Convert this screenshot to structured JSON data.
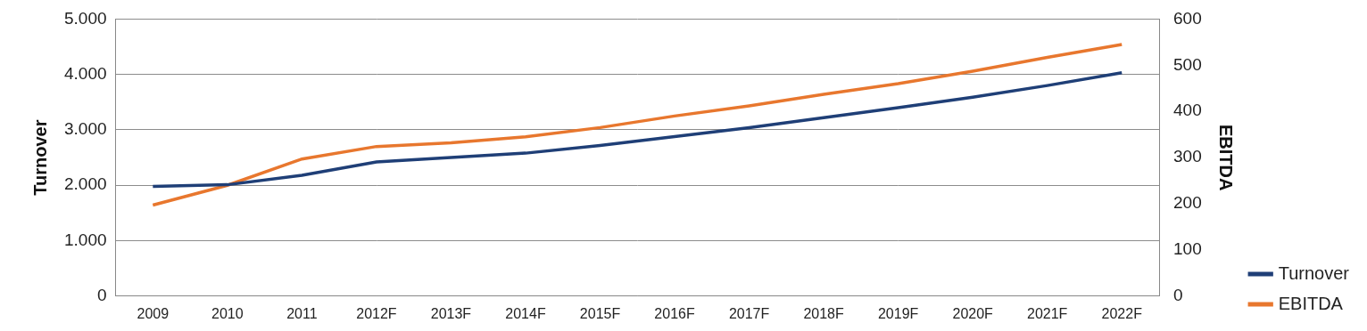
{
  "chart_data": {
    "type": "line",
    "categories": [
      "2009",
      "2010",
      "2011",
      "2012F",
      "2013F",
      "2014F",
      "2015F",
      "2016F",
      "2017F",
      "2018F",
      "2019F",
      "2020F",
      "2021F",
      "2022F"
    ],
    "y_label": "Turnover",
    "y2_label": "EBITDA",
    "ylim": [
      0,
      5000
    ],
    "yticks": [
      0,
      {
        "value": 1000,
        "label": "1.000"
      },
      {
        "value": 2000,
        "label": "2.000"
      },
      {
        "value": 3000,
        "label": "3.000"
      },
      {
        "value": 4000,
        "label": "4.000"
      },
      {
        "value": 5000,
        "label": "5.000"
      }
    ],
    "y2lim": [
      0,
      600
    ],
    "y2ticks": [
      0,
      100,
      200,
      300,
      400,
      500,
      600
    ],
    "grid": true,
    "legend": "right",
    "series": [
      {
        "name": "Turnover",
        "color": "#1f3f77",
        "marker": "none",
        "line_style": "solid",
        "values": [
          1980,
          2010,
          2180,
          2420,
          2500,
          2580,
          2720,
          2880,
          3040,
          3220,
          3400,
          3590,
          3800,
          4030
        ]
      },
      {
        "name": "EBITDA",
        "color": "#e8772e",
        "marker": "none",
        "line_style": "solid",
        "axis": "y2",
        "values": [
          197,
          240,
          297,
          324,
          332,
          345,
          365,
          390,
          412,
          437,
          460,
          487,
          517,
          545
        ]
      }
    ]
  }
}
